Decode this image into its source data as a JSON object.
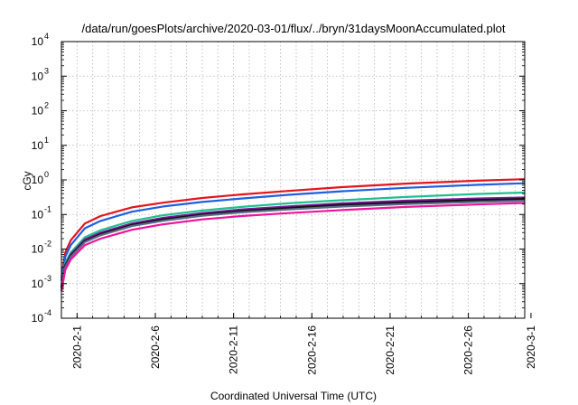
{
  "chart_data": {
    "type": "line",
    "title": "/data/run/goesPlots/archive/2020-03-01/flux/../bryn/31daysMoonAccumulated.plot",
    "xlabel": "Coordinated Universal Time (UTC)",
    "ylabel": "cGy",
    "yscale": "log",
    "ylim": [
      0.0001,
      10000
    ],
    "xlim": [
      0,
      29.6
    ],
    "y_ticks": [
      {
        "base": "10",
        "exp": "-4"
      },
      {
        "base": "10",
        "exp": "-3"
      },
      {
        "base": "10",
        "exp": "-2"
      },
      {
        "base": "10",
        "exp": "-1"
      },
      {
        "base": "10",
        "exp": "0"
      },
      {
        "base": "10",
        "exp": "1"
      },
      {
        "base": "10",
        "exp": "2"
      },
      {
        "base": "10",
        "exp": "3"
      },
      {
        "base": "10",
        "exp": "4"
      }
    ],
    "x_ticks": [
      {
        "label": "2020-2-1",
        "value": 1
      },
      {
        "label": "2020-2-6",
        "value": 6
      },
      {
        "label": "2020-2-11",
        "value": 11
      },
      {
        "label": "2020-2-16",
        "value": 16
      },
      {
        "label": "2020-2-21",
        "value": 21
      },
      {
        "label": "2020-2-26",
        "value": 26
      },
      {
        "label": "2020-3-1",
        "value": 30
      }
    ],
    "grid": true,
    "series": [
      {
        "color": "#e4141c",
        "values": [
          0.0015,
          0.008,
          0.018,
          0.055,
          0.09,
          0.16,
          0.22,
          0.3,
          0.38,
          0.48,
          0.62,
          0.78,
          0.95,
          1.05
        ]
      },
      {
        "color": "#1f5fe0",
        "values": [
          0.0012,
          0.006,
          0.013,
          0.04,
          0.065,
          0.12,
          0.17,
          0.23,
          0.29,
          0.37,
          0.47,
          0.59,
          0.72,
          0.8
        ]
      },
      {
        "color": "#1fbf8f",
        "values": [
          0.0009,
          0.004,
          0.008,
          0.022,
          0.035,
          0.065,
          0.095,
          0.13,
          0.165,
          0.21,
          0.26,
          0.32,
          0.39,
          0.43
        ]
      },
      {
        "color": "#7a1a9a",
        "values": [
          0.0008,
          0.0035,
          0.007,
          0.019,
          0.03,
          0.055,
          0.08,
          0.11,
          0.14,
          0.17,
          0.21,
          0.25,
          0.29,
          0.31
        ]
      },
      {
        "color": "#111111",
        "values": [
          0.00075,
          0.0033,
          0.0065,
          0.017,
          0.027,
          0.05,
          0.072,
          0.1,
          0.125,
          0.155,
          0.19,
          0.225,
          0.26,
          0.28
        ]
      },
      {
        "color": "#5a6a8a",
        "values": [
          0.0007,
          0.003,
          0.006,
          0.016,
          0.025,
          0.046,
          0.066,
          0.092,
          0.115,
          0.14,
          0.17,
          0.2,
          0.23,
          0.25
        ]
      },
      {
        "color": "#f0149a",
        "values": [
          0.0006,
          0.0025,
          0.005,
          0.013,
          0.02,
          0.036,
          0.052,
          0.072,
          0.09,
          0.11,
          0.135,
          0.165,
          0.195,
          0.215
        ]
      }
    ],
    "x": [
      0,
      0.25,
      0.6,
      1.5,
      2.5,
      4.5,
      6.5,
      9,
      11.5,
      14.5,
      18,
      22,
      26.5,
      29.6
    ]
  }
}
